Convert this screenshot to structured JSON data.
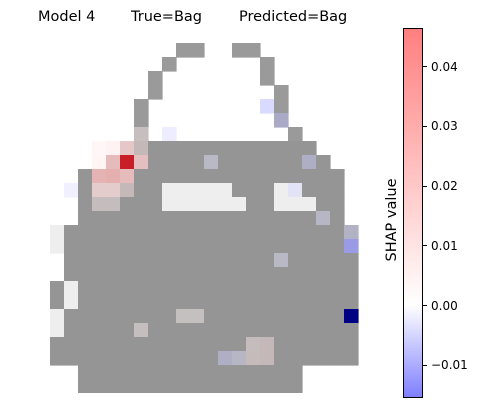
{
  "chart_data": {
    "type": "heatmap",
    "title_parts": {
      "model": "Model 4",
      "true_label": "True=Bag",
      "predicted_label": "Predicted=Bag"
    },
    "image": {
      "rows": 26,
      "cols": 24,
      "background": "#ffffff",
      "bag_gray": "#959595",
      "outline_gray": "#9a9a9a"
    },
    "colorbar": {
      "label": "SHAP value",
      "vmin": -0.0155,
      "vmax": 0.0465,
      "ticks": [
        {
          "value": 0.04,
          "label": "0.04"
        },
        {
          "value": 0.03,
          "label": "0.03"
        },
        {
          "value": 0.02,
          "label": "0.02"
        },
        {
          "value": 0.01,
          "label": "0.01"
        },
        {
          "value": 0.0,
          "label": "0.00"
        },
        {
          "value": -0.01,
          "label": "−0.01"
        }
      ],
      "colormap": "bwr",
      "colors": {
        "negative": "#7f7fff",
        "zero": "#ffffff",
        "positive": "#ff7f7f"
      }
    },
    "shap_highlights": [
      {
        "row": 9,
        "col": 6,
        "value": 0.038
      },
      {
        "row": 10,
        "col": 4,
        "value": 0.024
      },
      {
        "row": 10,
        "col": 5,
        "value": 0.026
      },
      {
        "row": 9,
        "col": 5,
        "value": 0.02
      },
      {
        "row": 9,
        "col": 7,
        "value": 0.018
      },
      {
        "row": 10,
        "col": 6,
        "value": 0.02
      },
      {
        "row": 8,
        "col": 6,
        "value": 0.014
      },
      {
        "row": 8,
        "col": 5,
        "value": 0.01
      },
      {
        "row": 11,
        "col": 4,
        "value": 0.012
      },
      {
        "row": 11,
        "col": 5,
        "value": 0.012
      },
      {
        "row": 7,
        "col": 7,
        "value": 0.008
      },
      {
        "row": 8,
        "col": 7,
        "value": 0.01
      },
      {
        "row": 11,
        "col": 6,
        "value": 0.01
      },
      {
        "row": 12,
        "col": 4,
        "value": 0.006
      },
      {
        "row": 12,
        "col": 5,
        "value": 0.006
      },
      {
        "row": 9,
        "col": 4,
        "value": 0.008
      },
      {
        "row": 8,
        "col": 4,
        "value": 0.006
      },
      {
        "row": 22,
        "col": 16,
        "value": 0.01
      },
      {
        "row": 23,
        "col": 15,
        "value": 0.008
      },
      {
        "row": 23,
        "col": 16,
        "value": 0.01
      },
      {
        "row": 22,
        "col": 15,
        "value": 0.006
      },
      {
        "row": 21,
        "col": 7,
        "value": 0.005
      },
      {
        "row": 20,
        "col": 10,
        "value": 0.004
      },
      {
        "row": 20,
        "col": 11,
        "value": 0.004
      },
      {
        "row": 5,
        "col": 16,
        "value": -0.01
      },
      {
        "row": 6,
        "col": 17,
        "value": -0.008
      },
      {
        "row": 15,
        "col": 22,
        "value": -0.012
      },
      {
        "row": 20,
        "col": 22,
        "value": -0.0155
      },
      {
        "row": 9,
        "col": 19,
        "value": -0.006
      },
      {
        "row": 11,
        "col": 18,
        "value": -0.005
      },
      {
        "row": 7,
        "col": 9,
        "value": -0.005
      },
      {
        "row": 14,
        "col": 22,
        "value": -0.005
      },
      {
        "row": 23,
        "col": 13,
        "value": -0.006
      },
      {
        "row": 23,
        "col": 14,
        "value": -0.004
      },
      {
        "row": 9,
        "col": 12,
        "value": -0.003
      },
      {
        "row": 11,
        "col": 2,
        "value": -0.004
      },
      {
        "row": 16,
        "col": 17,
        "value": -0.003
      },
      {
        "row": 13,
        "col": 20,
        "value": -0.004
      }
    ]
  }
}
